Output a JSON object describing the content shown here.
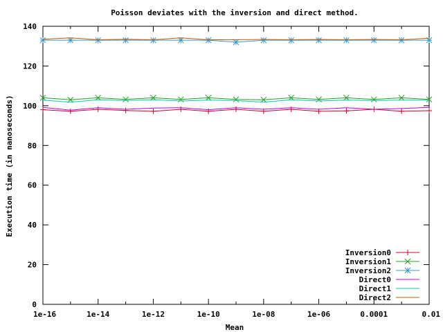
{
  "chart_data": {
    "type": "line",
    "title": "Poisson deviates with the inversion and direct method.",
    "xlabel": "Mean",
    "ylabel": "Execution time (in nanoseconds)",
    "x_scale": "log",
    "xlim": [
      1e-16,
      0.01
    ],
    "ylim": [
      0,
      140
    ],
    "grid": false,
    "legend_position": "bottom-right",
    "x_ticks": [
      {
        "value": 1e-16,
        "label": "1e-16"
      },
      {
        "value": 1e-14,
        "label": "1e-14"
      },
      {
        "value": 1e-12,
        "label": "1e-12"
      },
      {
        "value": 1e-10,
        "label": "1e-10"
      },
      {
        "value": 1e-08,
        "label": "1e-08"
      },
      {
        "value": 1e-06,
        "label": "1e-06"
      },
      {
        "value": 0.0001,
        "label": "0.0001"
      },
      {
        "value": 0.01,
        "label": "0.01"
      }
    ],
    "y_ticks": [
      {
        "value": 0,
        "label": "0"
      },
      {
        "value": 20,
        "label": "20"
      },
      {
        "value": 40,
        "label": "40"
      },
      {
        "value": 60,
        "label": "60"
      },
      {
        "value": 80,
        "label": "80"
      },
      {
        "value": 100,
        "label": "100"
      },
      {
        "value": 120,
        "label": "120"
      },
      {
        "value": 140,
        "label": "140"
      }
    ],
    "x": [
      1e-16,
      1e-15,
      1e-14,
      1e-13,
      1e-12,
      1e-11,
      1e-10,
      1e-09,
      1e-08,
      1e-07,
      1e-06,
      1e-05,
      0.0001,
      0.001,
      0.01
    ],
    "series": [
      {
        "name": "Inversion0",
        "color": "#cc0033",
        "marker": "plus",
        "values": [
          98,
          97.2,
          98.2,
          97.6,
          97.2,
          98.2,
          97.2,
          98.2,
          97.2,
          98.2,
          97.2,
          97.4,
          98.2,
          97.2,
          97.5
        ]
      },
      {
        "name": "Inversion1",
        "color": "#22a022",
        "marker": "x",
        "values": [
          104,
          103,
          104,
          103.2,
          104,
          103.2,
          104,
          103.2,
          103,
          104,
          103.2,
          104,
          103.2,
          104,
          103.2
        ]
      },
      {
        "name": "Inversion2",
        "color": "#3399cc",
        "marker": "star",
        "values": [
          133,
          133,
          133,
          133,
          133,
          133,
          133,
          132,
          133,
          133,
          133,
          133,
          133,
          133,
          133
        ]
      },
      {
        "name": "Direct0",
        "color": "#cc00cc",
        "marker": "none",
        "values": [
          99.2,
          97.8,
          99,
          98.2,
          98.8,
          99,
          98,
          99,
          98.2,
          99,
          98.2,
          99,
          98.2,
          98.6,
          99.2
        ]
      },
      {
        "name": "Direct1",
        "color": "#00d0a0",
        "marker": "none",
        "values": [
          102.8,
          101.8,
          103,
          102.6,
          103,
          102.4,
          102.8,
          102.6,
          101.8,
          103,
          102.4,
          102.8,
          102.6,
          102.8,
          102.8
        ]
      },
      {
        "name": "Direct2",
        "color": "#cc5500",
        "marker": "none",
        "values": [
          133.5,
          134.2,
          133.2,
          133.5,
          133.2,
          134.2,
          133.2,
          133.2,
          133.4,
          133.2,
          133.4,
          133.2,
          133.4,
          133.2,
          134
        ]
      }
    ]
  }
}
